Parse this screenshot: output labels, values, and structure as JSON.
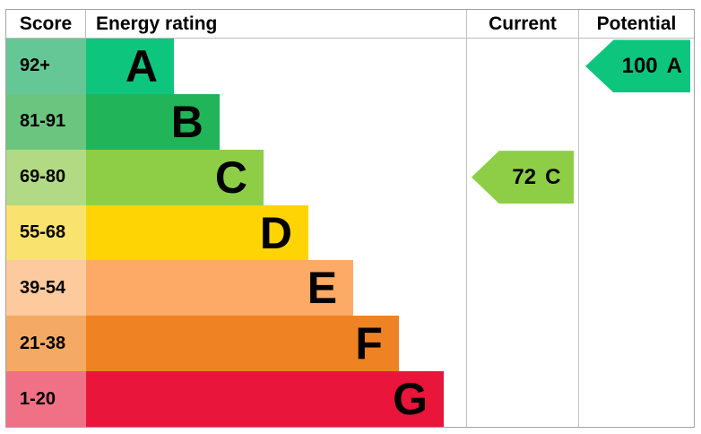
{
  "header": {
    "score": "Score",
    "energy_rating": "Energy rating",
    "current": "Current",
    "potential": "Potential"
  },
  "bands": [
    {
      "letter": "A",
      "score_range": "92+",
      "bar_color": "#0ec57e",
      "score_cell_color": "#66c796",
      "bar_width_pct": 23.1
    },
    {
      "letter": "B",
      "score_range": "81-91",
      "bar_color": "#21b459",
      "score_cell_color": "#6cc57f",
      "bar_width_pct": 35.1
    },
    {
      "letter": "C",
      "score_range": "69-80",
      "bar_color": "#8dce46",
      "score_cell_color": "#b2da85",
      "bar_width_pct": 46.7
    },
    {
      "letter": "D",
      "score_range": "55-68",
      "bar_color": "#ffd405",
      "score_cell_color": "#f9e26e",
      "bar_width_pct": 58.5
    },
    {
      "letter": "E",
      "score_range": "39-54",
      "bar_color": "#fcaa65",
      "score_cell_color": "#fdca9e",
      "bar_width_pct": 70.3
    },
    {
      "letter": "F",
      "score_range": "21-38",
      "bar_color": "#ef8223",
      "score_cell_color": "#f4aa64",
      "bar_width_pct": 82.3
    },
    {
      "letter": "G",
      "score_range": "1-20",
      "bar_color": "#e9153b",
      "score_cell_color": "#f07185",
      "bar_width_pct": 94.1
    }
  ],
  "current": {
    "value": "72",
    "band": "C",
    "arrow_color": "#8dce46",
    "row_index": 2
  },
  "potential": {
    "value": "100",
    "band": "A",
    "arrow_color": "#0ec57e",
    "row_index": 0
  },
  "colors": {
    "outer_border": "#a3a3a3",
    "grid_line": "#c2c2c2",
    "text": "#000000"
  },
  "chart_data": {
    "type": "bar",
    "title": "Energy rating",
    "columns": [
      "Score",
      "Energy rating",
      "Current",
      "Potential"
    ],
    "categories": [
      "A",
      "B",
      "C",
      "D",
      "E",
      "F",
      "G"
    ],
    "score_ranges": [
      "92+",
      "81-91",
      "69-80",
      "55-68",
      "39-54",
      "21-38",
      "1-20"
    ],
    "bar_relative_widths_pct": [
      23.1,
      35.1,
      46.7,
      58.5,
      70.3,
      82.3,
      94.1
    ],
    "band_colors": [
      "#0ec57e",
      "#21b459",
      "#8dce46",
      "#ffd405",
      "#fcaa65",
      "#ef8223",
      "#e9153b"
    ],
    "current": {
      "score": 72,
      "band": "C"
    },
    "potential": {
      "score": 100,
      "band": "A"
    },
    "legend_position": "none",
    "grid": false
  }
}
